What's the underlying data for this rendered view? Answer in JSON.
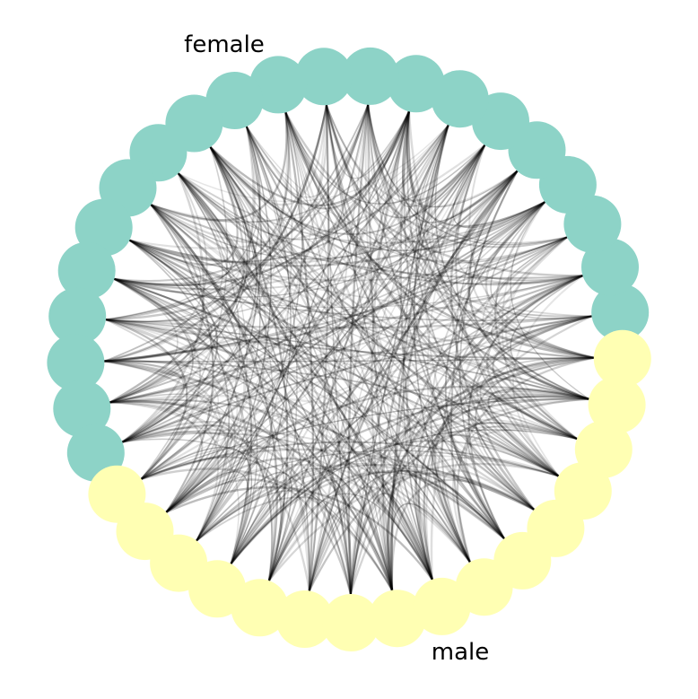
{
  "diagram": {
    "type": "circos-network",
    "groups": [
      {
        "label": "female",
        "node_count": 21,
        "color": "#8dd3c7"
      },
      {
        "label": "male",
        "node_count": 16,
        "color": "#ffffb3"
      }
    ],
    "edge_color": "#000000"
  }
}
